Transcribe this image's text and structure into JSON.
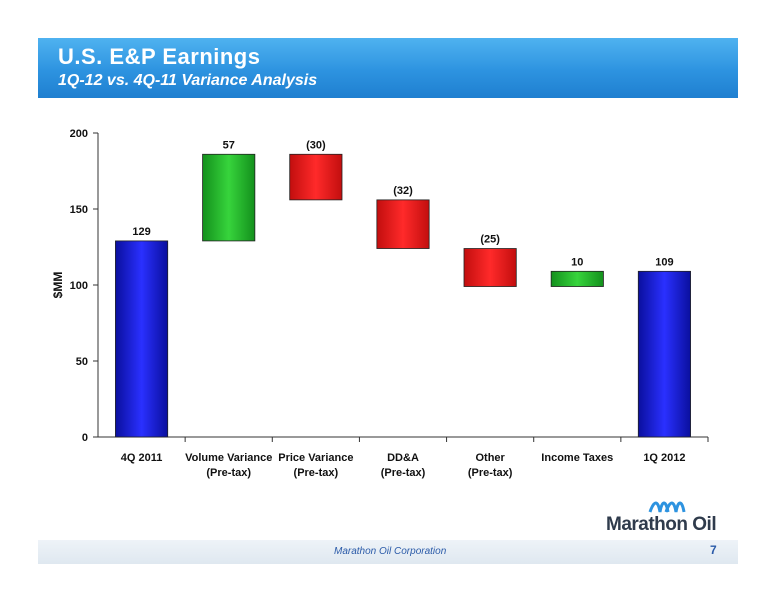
{
  "header": {
    "title": "U.S. E&P Earnings",
    "subtitle": "1Q-12 vs. 4Q-11 Variance Analysis"
  },
  "footer": {
    "company": "Marathon Oil Corporation",
    "page": "7"
  },
  "logo": {
    "text": "Marathon Oil",
    "icon": "marathon-waves-icon"
  },
  "colors": {
    "total": "#0a10c8",
    "increase": "#1fae2a",
    "decrease": "#e41616",
    "banner": "#2d93e0"
  },
  "chart_data": {
    "type": "bar",
    "subtype": "waterfall",
    "categories": [
      "4Q 2011",
      "Volume Variance\n(Pre-tax)",
      "Price Variance\n(Pre-tax)",
      "DD&A\n(Pre-tax)",
      "Other\n(Pre-tax)",
      "Income Taxes",
      "1Q 2012"
    ],
    "values": [
      129,
      57,
      -30,
      -32,
      -25,
      10,
      109
    ],
    "data_labels": [
      "129",
      "57",
      "(30)",
      "(32)",
      "(25)",
      "10",
      "109"
    ],
    "kinds": [
      "total",
      "increase",
      "decrease",
      "decrease",
      "decrease",
      "increase",
      "total"
    ],
    "ylabel": "$MM",
    "ylim": [
      0,
      200
    ],
    "yticks": [
      0,
      50,
      100,
      150,
      200
    ],
    "grid": false,
    "legend": "none"
  }
}
